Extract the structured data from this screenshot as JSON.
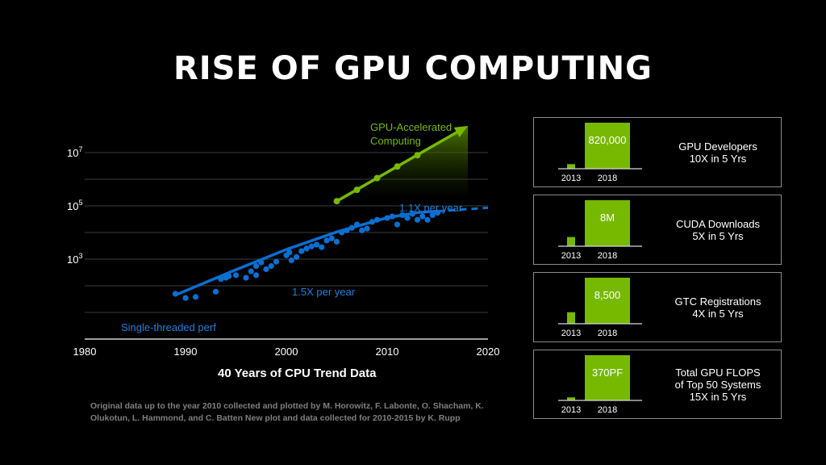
{
  "title": "RISE OF GPU COMPUTING",
  "chart_data": [
    {
      "type": "scatter",
      "title": "",
      "xlabel": "40 Years of CPU Trend Data",
      "ylabel": "",
      "xlim": [
        1980,
        2020
      ],
      "ylim": [
        1,
        100000000
      ],
      "yscale": "log",
      "grid": true,
      "x_ticks": [
        "1980",
        "1990",
        "2000",
        "2010",
        "2020"
      ],
      "y_ticks": [
        {
          "base": "10",
          "exp": "7",
          "value": 10000000
        },
        {
          "base": "10",
          "exp": "5",
          "value": 100000
        },
        {
          "base": "10",
          "exp": "3",
          "value": 1000
        }
      ],
      "series": [
        {
          "name": "Single-threaded perf",
          "color": "#0a6fd1",
          "points": [
            [
              1989,
              50
            ],
            [
              1990,
              35
            ],
            [
              1991,
              38
            ],
            [
              1993,
              60
            ],
            [
              1993.5,
              180
            ],
            [
              1994,
              200
            ],
            [
              1994.3,
              230
            ],
            [
              1995,
              250
            ],
            [
              1996,
              200
            ],
            [
              1996.5,
              350
            ],
            [
              1997,
              250
            ],
            [
              1997,
              550
            ],
            [
              1997.5,
              750
            ],
            [
              1998,
              420
            ],
            [
              1998.5,
              550
            ],
            [
              1999,
              800
            ],
            [
              2000,
              1400
            ],
            [
              2000.3,
              1800
            ],
            [
              2000.5,
              900
            ],
            [
              2001,
              1200
            ],
            [
              2001.5,
              2000
            ],
            [
              2002,
              2500
            ],
            [
              2002.5,
              3000
            ],
            [
              2003,
              3500
            ],
            [
              2003.5,
              2800
            ],
            [
              2004,
              5000
            ],
            [
              2004.5,
              6000
            ],
            [
              2005,
              4500
            ],
            [
              2005.5,
              10000
            ],
            [
              2006,
              12000
            ],
            [
              2006.5,
              15000
            ],
            [
              2007,
              20000
            ],
            [
              2007.5,
              12000
            ],
            [
              2008,
              14000
            ],
            [
              2008.5,
              25000
            ],
            [
              2009,
              30000
            ],
            [
              2010,
              35000
            ],
            [
              2010.5,
              40000
            ],
            [
              2011,
              20000
            ],
            [
              2011.5,
              45000
            ],
            [
              2012,
              35000
            ],
            [
              2012.5,
              50000
            ],
            [
              2013,
              30000
            ],
            [
              2013.5,
              40000
            ],
            [
              2014,
              30000
            ],
            [
              2014.5,
              45000
            ],
            [
              2015,
              55000
            ]
          ],
          "trend": [
            [
              1989,
              45
            ],
            [
              1995,
              400
            ],
            [
              2000,
              2300
            ],
            [
              2005,
              10500
            ],
            [
              2010,
              36000
            ],
            [
              2013,
              56000
            ],
            [
              2015,
              63000
            ]
          ],
          "trend_extension": [
            [
              2015,
              63000
            ],
            [
              2020,
              85000
            ]
          ],
          "annotations": [
            "1.5X per year",
            "1.1X per year"
          ]
        },
        {
          "name": "GPU-Accelerated Computing",
          "color": "#76b900",
          "points": [
            [
              2005,
              150000
            ],
            [
              2007,
              400000
            ],
            [
              2009,
              1100000
            ],
            [
              2011,
              3000000
            ],
            [
              2013,
              8000000
            ]
          ],
          "trend_end": [
            2018,
            100000000
          ]
        }
      ]
    },
    {
      "type": "bar",
      "categories": [
        "2013",
        "2018"
      ],
      "color": "#76b900",
      "panels": [
        {
          "label": "GPU Developers 10X in 5 Yrs",
          "lines": [
            "GPU Developers",
            "10X in 5 Yrs"
          ],
          "values": [
            82000,
            820000
          ],
          "value_label": "820,000"
        },
        {
          "label": "CUDA Downloads 5X in 5 Yrs",
          "lines": [
            "CUDA Downloads",
            "5X in 5 Yrs"
          ],
          "values": [
            1.6,
            8
          ],
          "value_label": "8M"
        },
        {
          "label": "GTC Registrations 4X in 5 Yrs",
          "lines": [
            "GTC Registrations",
            "4X in 5 Yrs"
          ],
          "values": [
            2125,
            8500
          ],
          "value_label": "8,500"
        },
        {
          "label": "Total GPU FLOPS of Top 50 Systems 15X in 5 Yrs",
          "lines": [
            "Total GPU FLOPS",
            "of Top 50 Systems",
            "15X in 5 Yrs"
          ],
          "values": [
            25,
            370
          ],
          "value_label": "370PF"
        }
      ]
    }
  ],
  "source_note": "Original data up to the year 2010 collected and plotted by M. Horowitz, F. Labonte, O. Shacham, K. Olukotun, L. Hammond, and C. Batten New plot and data collected for 2010-2015 by K. Rupp"
}
